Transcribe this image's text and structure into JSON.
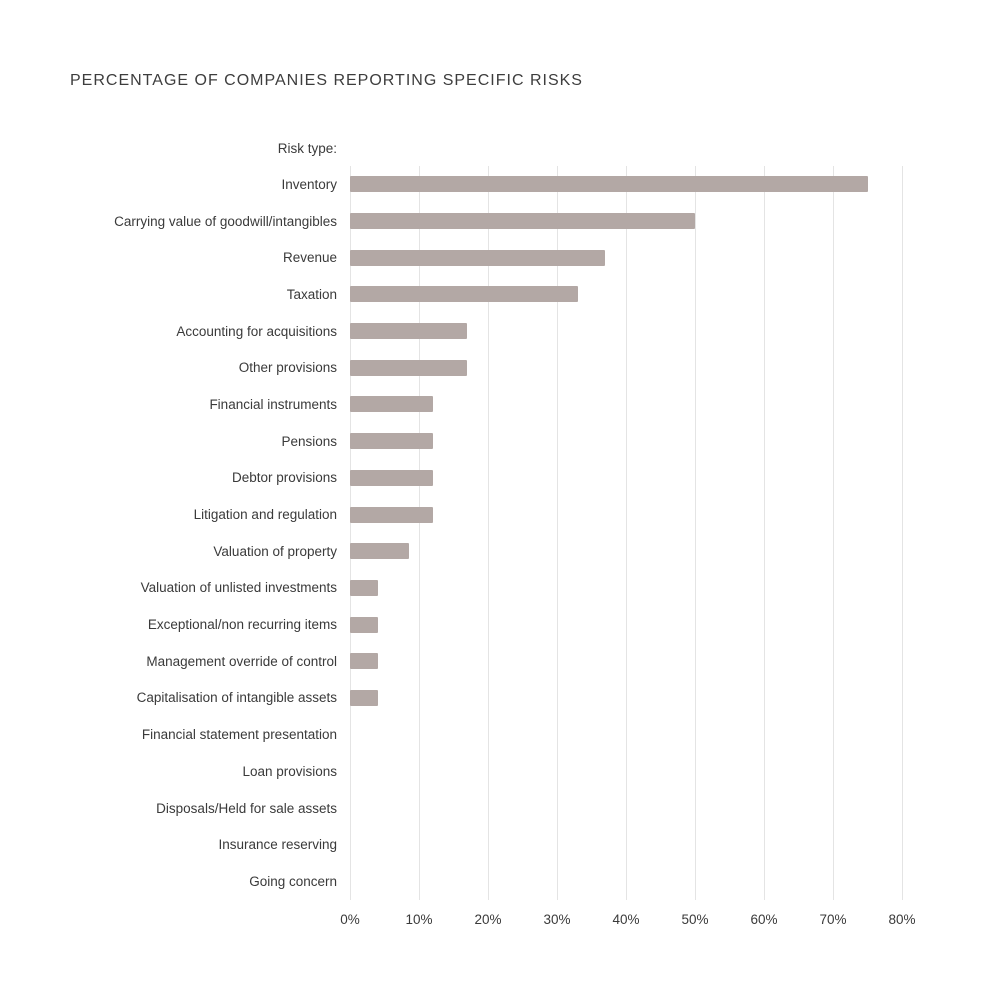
{
  "chart_data": {
    "type": "bar",
    "orientation": "horizontal",
    "title": "PERCENTAGE OF COMPANIES REPORTING SPECIFIC RISKS",
    "axis_header": "Risk type:",
    "categories": [
      "Inventory",
      "Carrying value of goodwill/intangibles",
      "Revenue",
      "Taxation",
      "Accounting for acquisitions",
      "Other provisions",
      "Financial instruments",
      "Pensions",
      "Debtor provisions",
      "Litigation and regulation",
      "Valuation of property",
      "Valuation of unlisted investments",
      "Exceptional/non recurring items",
      "Management override of control",
      "Capitalisation of intangible assets",
      "Financial statement presentation",
      "Loan provisions",
      "Disposals/Held for sale assets",
      "Insurance reserving",
      "Going concern"
    ],
    "values": [
      75,
      50,
      37,
      33,
      17,
      17,
      12,
      12,
      12,
      12,
      8.5,
      4,
      4,
      4,
      4,
      0,
      0,
      0,
      0,
      0
    ],
    "x_ticks": [
      "0%",
      "10%",
      "20%",
      "30%",
      "40%",
      "50%",
      "60%",
      "70%",
      "80%"
    ],
    "xlim": [
      0,
      80
    ],
    "xlabel": "",
    "ylabel": "Risk type:",
    "grid": true,
    "legend": false,
    "bar_color": "#b3a8a5",
    "gridline_color": "#e4e4e4"
  }
}
